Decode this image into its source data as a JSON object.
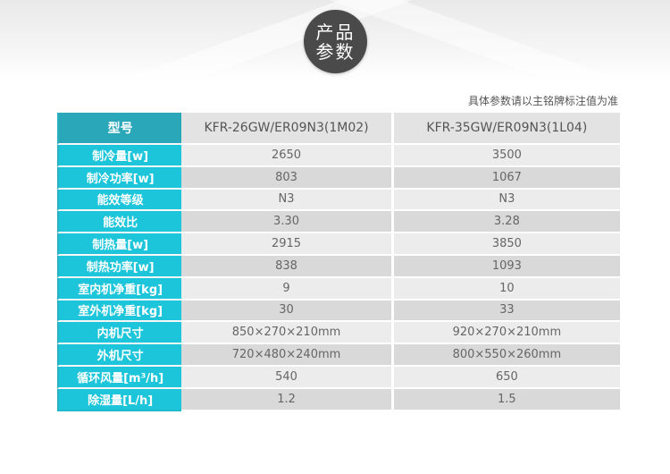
{
  "badge": {
    "line1": "产品",
    "line2": "参数"
  },
  "note": "具体参数请以主铭牌标注值为准",
  "table": {
    "header": {
      "label": "型号",
      "model1": "KFR-26GW/ER09N3(1M02)",
      "model2": "KFR-35GW/ER09N3(1L04)"
    },
    "rows": [
      {
        "label": "制冷量[w]",
        "v1": "2650",
        "v2": "3500"
      },
      {
        "label": "制冷功率[w]",
        "v1": "803",
        "v2": "1067"
      },
      {
        "label": "能效等级",
        "v1": "N3",
        "v2": "N3"
      },
      {
        "label": "能效比",
        "v1": "3.30",
        "v2": "3.28"
      },
      {
        "label": "制热量[w]",
        "v1": "2915",
        "v2": "3850"
      },
      {
        "label": "制热功率[w]",
        "v1": "838",
        "v2": "1093"
      },
      {
        "label": "室内机净重[kg]",
        "v1": "9",
        "v2": "10"
      },
      {
        "label": "室外机净重[kg]",
        "v1": "30",
        "v2": "33"
      },
      {
        "label": "内机尺寸",
        "v1": "850×270×210mm",
        "v2": "920×270×210mm"
      },
      {
        "label": "外机尺寸",
        "v1": "720×480×240mm",
        "v2": "800×550×260mm"
      },
      {
        "label": "循环风量[m³/h]",
        "v1": "540",
        "v2": "650"
      },
      {
        "label": "除湿量[L/h]",
        "v1": "1.2",
        "v2": "1.5"
      }
    ]
  },
  "colors": {
    "label_bg": "#1dc5da",
    "header_label_bg": "#2aa7b8",
    "badge_bg": "#4a4a4a"
  }
}
